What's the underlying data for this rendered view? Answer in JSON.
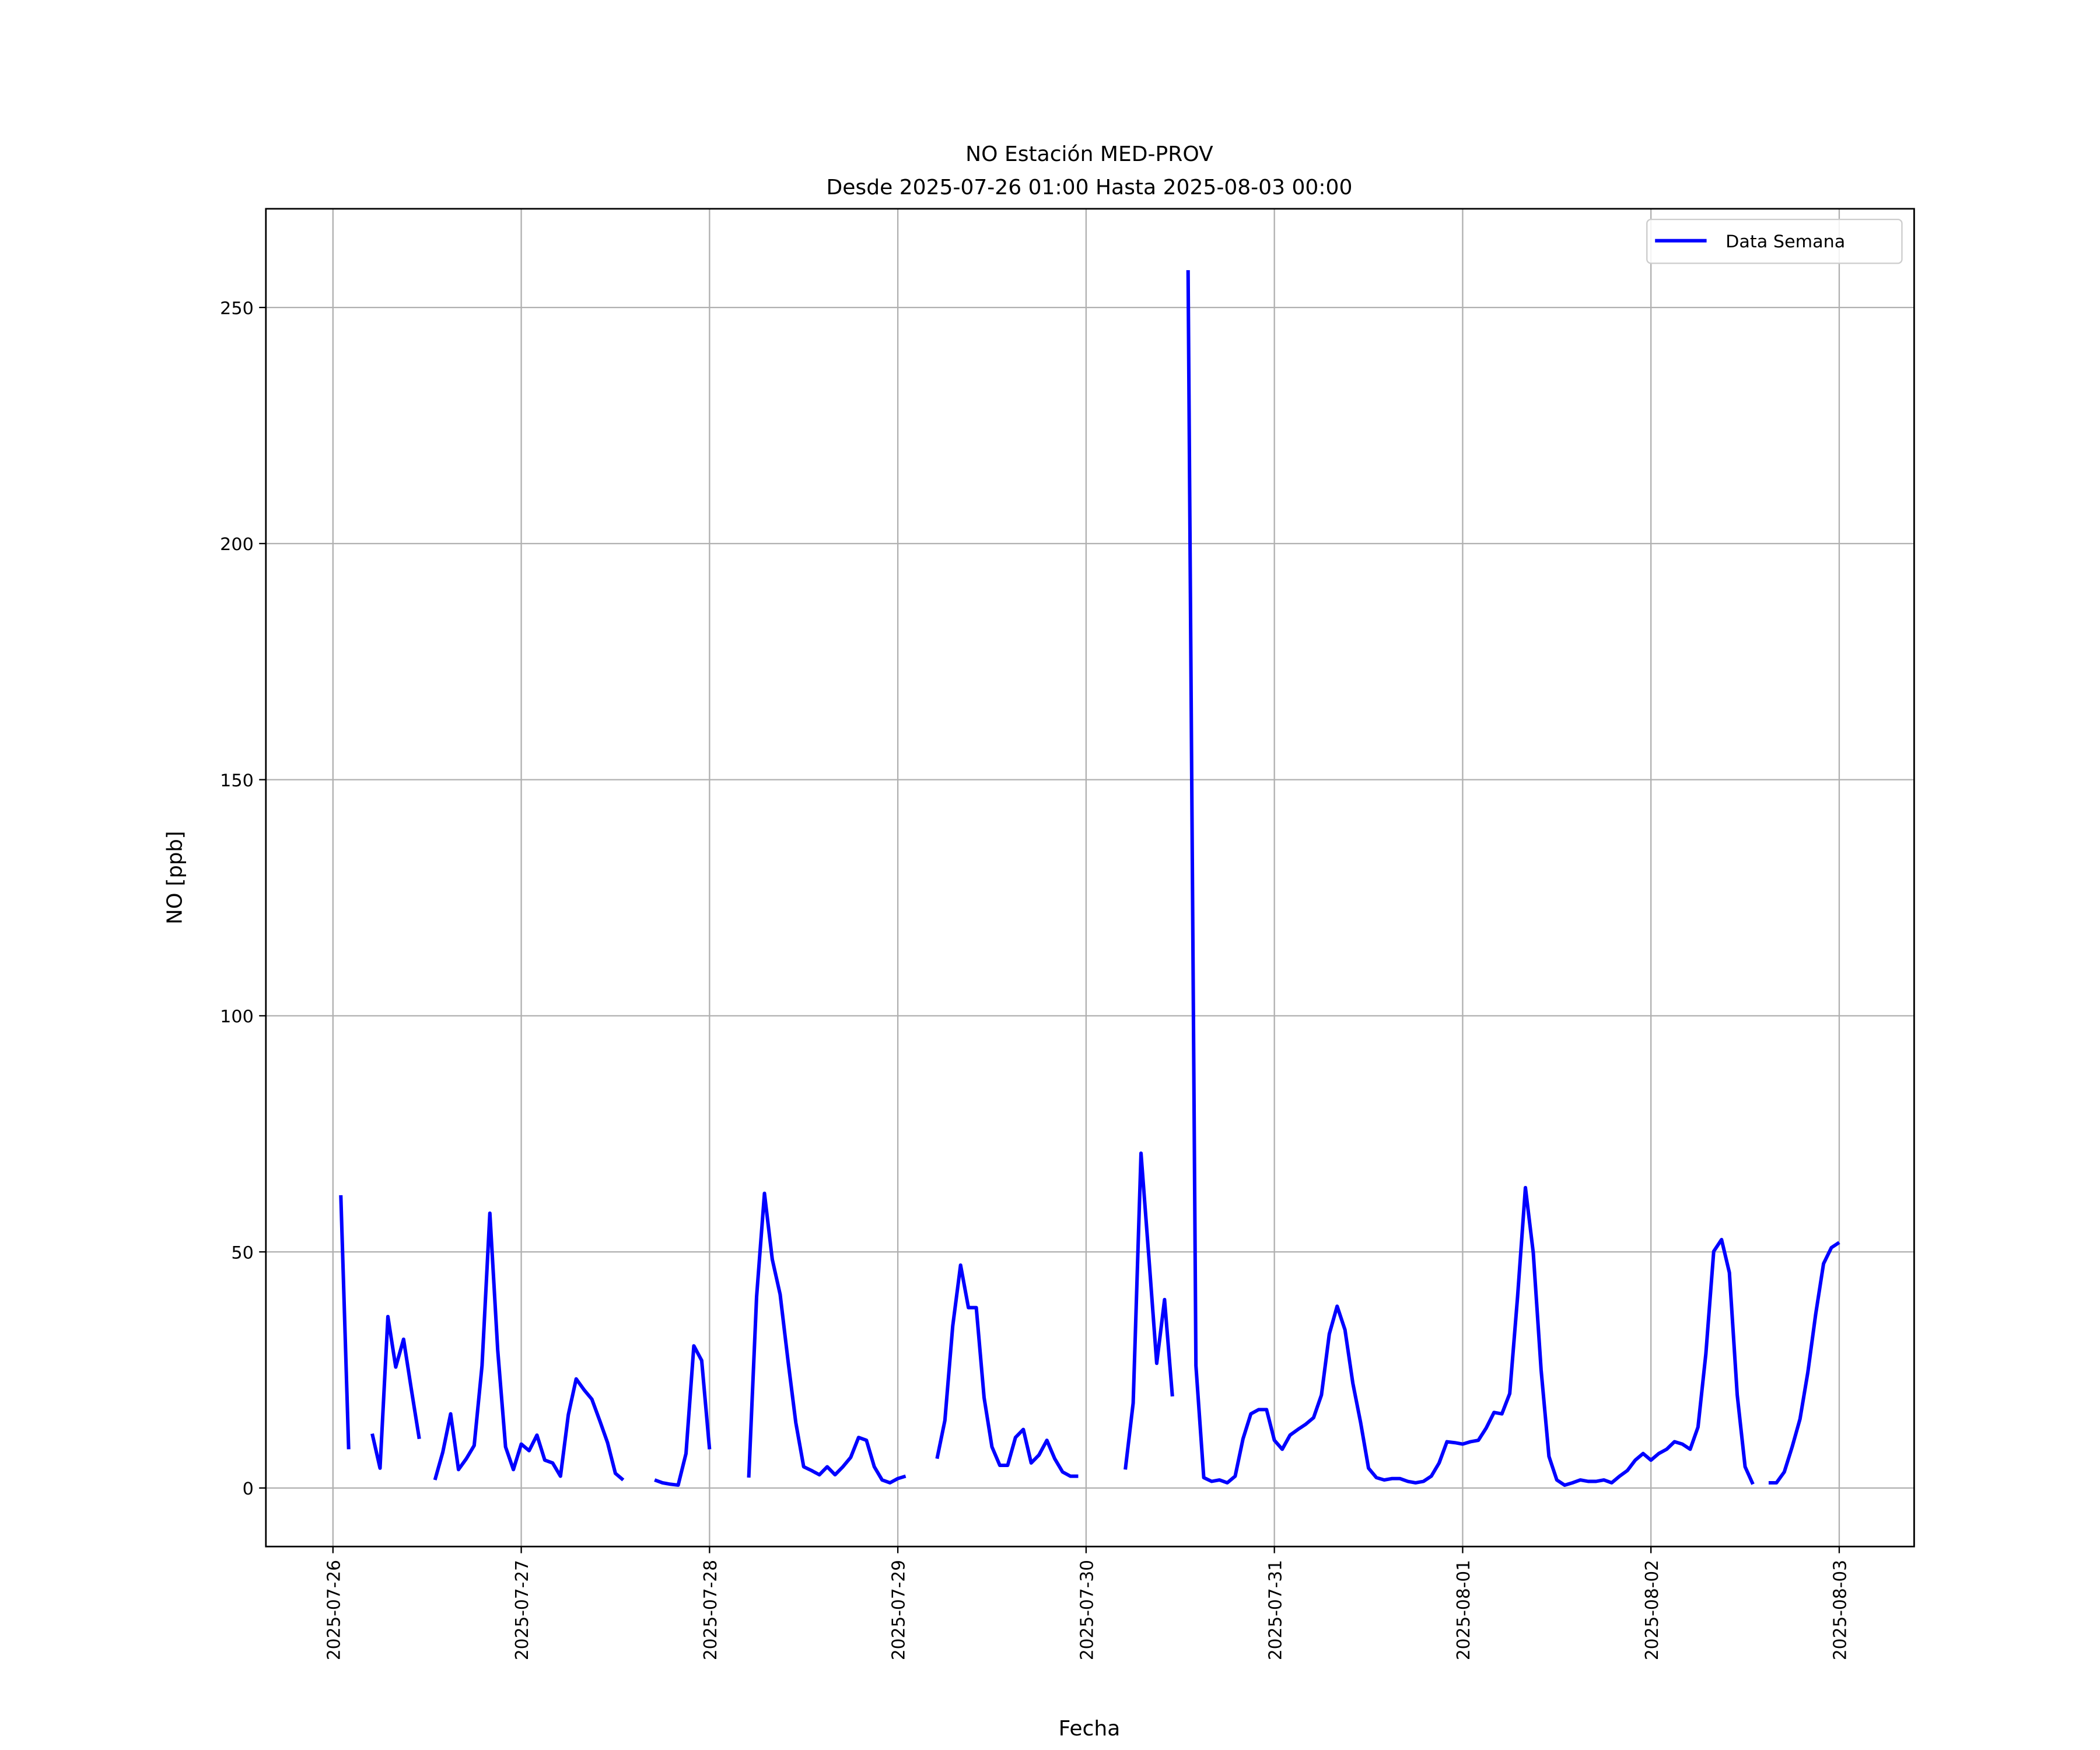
{
  "chart_data": {
    "type": "line",
    "title": "NO Estación MED-PROV",
    "subtitle": "Desde 2025-07-26 01:00 Hasta 2025-08-03 00:00",
    "x_label": "Fecha",
    "y_label": "NO [ppb]",
    "x": [
      "2025-07-26 01:00",
      "2025-07-26 02:00",
      "2025-07-26 03:00",
      "2025-07-26 04:00",
      "2025-07-26 05:00",
      "2025-07-26 06:00",
      "2025-07-26 07:00",
      "2025-07-26 08:00",
      "2025-07-26 09:00",
      "2025-07-26 10:00",
      "2025-07-26 11:00",
      "2025-07-26 12:00",
      "2025-07-26 13:00",
      "2025-07-26 14:00",
      "2025-07-26 15:00",
      "2025-07-26 16:00",
      "2025-07-26 17:00",
      "2025-07-26 18:00",
      "2025-07-26 19:00",
      "2025-07-26 20:00",
      "2025-07-26 21:00",
      "2025-07-26 22:00",
      "2025-07-26 23:00",
      "2025-07-27 00:00",
      "2025-07-27 01:00",
      "2025-07-27 02:00",
      "2025-07-27 03:00",
      "2025-07-27 04:00",
      "2025-07-27 05:00",
      "2025-07-27 06:00",
      "2025-07-27 07:00",
      "2025-07-27 08:00",
      "2025-07-27 09:00",
      "2025-07-27 10:00",
      "2025-07-27 11:00",
      "2025-07-27 12:00",
      "2025-07-27 13:00",
      "2025-07-27 14:00",
      "2025-07-27 15:00",
      "2025-07-27 16:00",
      "2025-07-27 17:00",
      "2025-07-27 18:00",
      "2025-07-27 19:00",
      "2025-07-27 20:00",
      "2025-07-27 21:00",
      "2025-07-27 22:00",
      "2025-07-27 23:00",
      "2025-07-28 00:00",
      "2025-07-28 01:00",
      "2025-07-28 02:00",
      "2025-07-28 03:00",
      "2025-07-28 04:00",
      "2025-07-28 05:00",
      "2025-07-28 06:00",
      "2025-07-28 07:00",
      "2025-07-28 08:00",
      "2025-07-28 09:00",
      "2025-07-28 10:00",
      "2025-07-28 11:00",
      "2025-07-28 12:00",
      "2025-07-28 13:00",
      "2025-07-28 14:00",
      "2025-07-28 15:00",
      "2025-07-28 16:00",
      "2025-07-28 17:00",
      "2025-07-28 18:00",
      "2025-07-28 19:00",
      "2025-07-28 20:00",
      "2025-07-28 21:00",
      "2025-07-28 22:00",
      "2025-07-28 23:00",
      "2025-07-29 00:00",
      "2025-07-29 01:00",
      "2025-07-29 02:00",
      "2025-07-29 03:00",
      "2025-07-29 04:00",
      "2025-07-29 05:00",
      "2025-07-29 06:00",
      "2025-07-29 07:00",
      "2025-07-29 08:00",
      "2025-07-29 09:00",
      "2025-07-29 10:00",
      "2025-07-29 11:00",
      "2025-07-29 12:00",
      "2025-07-29 13:00",
      "2025-07-29 14:00",
      "2025-07-29 15:00",
      "2025-07-29 16:00",
      "2025-07-29 17:00",
      "2025-07-29 18:00",
      "2025-07-29 19:00",
      "2025-07-29 20:00",
      "2025-07-29 21:00",
      "2025-07-29 22:00",
      "2025-07-29 23:00",
      "2025-07-30 00:00",
      "2025-07-30 01:00",
      "2025-07-30 02:00",
      "2025-07-30 03:00",
      "2025-07-30 04:00",
      "2025-07-30 05:00",
      "2025-07-30 06:00",
      "2025-07-30 07:00",
      "2025-07-30 08:00",
      "2025-07-30 09:00",
      "2025-07-30 10:00",
      "2025-07-30 11:00",
      "2025-07-30 12:00",
      "2025-07-30 13:00",
      "2025-07-30 14:00",
      "2025-07-30 15:00",
      "2025-07-30 16:00",
      "2025-07-30 17:00",
      "2025-07-30 18:00",
      "2025-07-30 19:00",
      "2025-07-30 20:00",
      "2025-07-30 21:00",
      "2025-07-30 22:00",
      "2025-07-30 23:00",
      "2025-07-31 00:00",
      "2025-07-31 01:00",
      "2025-07-31 02:00",
      "2025-07-31 03:00",
      "2025-07-31 04:00",
      "2025-07-31 05:00",
      "2025-07-31 06:00",
      "2025-07-31 07:00",
      "2025-07-31 08:00",
      "2025-07-31 09:00",
      "2025-07-31 10:00",
      "2025-07-31 11:00",
      "2025-07-31 12:00",
      "2025-07-31 13:00",
      "2025-07-31 14:00",
      "2025-07-31 15:00",
      "2025-07-31 16:00",
      "2025-07-31 17:00",
      "2025-07-31 18:00",
      "2025-07-31 19:00",
      "2025-07-31 20:00",
      "2025-07-31 21:00",
      "2025-07-31 22:00",
      "2025-07-31 23:00",
      "2025-08-01 00:00",
      "2025-08-01 01:00",
      "2025-08-01 02:00",
      "2025-08-01 03:00",
      "2025-08-01 04:00",
      "2025-08-01 05:00",
      "2025-08-01 06:00",
      "2025-08-01 07:00",
      "2025-08-01 08:00",
      "2025-08-01 09:00",
      "2025-08-01 10:00",
      "2025-08-01 11:00",
      "2025-08-01 12:00",
      "2025-08-01 13:00",
      "2025-08-01 14:00",
      "2025-08-01 15:00",
      "2025-08-01 16:00",
      "2025-08-01 17:00",
      "2025-08-01 18:00",
      "2025-08-01 19:00",
      "2025-08-01 20:00",
      "2025-08-01 21:00",
      "2025-08-01 22:00",
      "2025-08-01 23:00",
      "2025-08-02 00:00",
      "2025-08-02 01:00",
      "2025-08-02 02:00",
      "2025-08-02 03:00",
      "2025-08-02 04:00",
      "2025-08-02 05:00",
      "2025-08-02 06:00",
      "2025-08-02 07:00",
      "2025-08-02 08:00",
      "2025-08-02 09:00",
      "2025-08-02 10:00",
      "2025-08-02 11:00",
      "2025-08-02 12:00",
      "2025-08-02 13:00",
      "2025-08-02 14:00",
      "2025-08-02 15:00",
      "2025-08-02 16:00",
      "2025-08-02 17:00",
      "2025-08-02 18:00",
      "2025-08-02 19:00",
      "2025-08-02 20:00",
      "2025-08-02 21:00",
      "2025-08-02 22:00",
      "2025-08-02 23:00",
      "2025-08-03 00:00"
    ],
    "series": [
      {
        "name": "Data Semana",
        "color": "#0000ff",
        "values": [
          62,
          8.2,
          null,
          null,
          11.5,
          4.2,
          36.3,
          25.6,
          31.5,
          20.8,
          10.4,
          null,
          1.7,
          7.6,
          15.7,
          3.9,
          6.2,
          9,
          25.9,
          58.2,
          29.2,
          8.7,
          3.9,
          9.3,
          7.9,
          11.2,
          5.9,
          5.3,
          2.5,
          15.5,
          23.1,
          20.8,
          18.8,
          14.3,
          9.6,
          3.1,
          1.7,
          null,
          null,
          null,
          1.7,
          1.1,
          0.8,
          0.6,
          7.3,
          30.1,
          27,
          8.2,
          null,
          null,
          null,
          null,
          2.2,
          40.5,
          62.4,
          48.4,
          41,
          27,
          13.8,
          4.5,
          3.7,
          2.8,
          4.5,
          2.8,
          4.5,
          6.5,
          10.7,
          10.1,
          4.5,
          1.7,
          1.1,
          2,
          2.5,
          null,
          null,
          null,
          6.2,
          14.3,
          34.3,
          47.2,
          38.2,
          38.2,
          19.1,
          8.7,
          4.8,
          4.8,
          10.7,
          12.4,
          5.3,
          7,
          10.1,
          6.2,
          3.4,
          2.5,
          2.5,
          null,
          null,
          null,
          null,
          null,
          3.9,
          18,
          70.9,
          48.9,
          26.4,
          39.9,
          19.4,
          null,
          257.9,
          25.9,
          2.2,
          1.4,
          1.7,
          1.1,
          2.5,
          10.4,
          15.7,
          16.6,
          16.6,
          10.1,
          8.2,
          11.2,
          12.4,
          13.5,
          14.9,
          19.7,
          32.6,
          38.5,
          33.5,
          22.2,
          13.8,
          4.2,
          2.2,
          1.7,
          2,
          2,
          1.4,
          1.1,
          1.4,
          2.5,
          5.3,
          9.8,
          9.6,
          9.3,
          9.8,
          10.1,
          12.7,
          16,
          15.7,
          20,
          40.5,
          63.6,
          49.8,
          25,
          6.7,
          1.7,
          0.6,
          1.1,
          1.7,
          1.4,
          1.4,
          1.7,
          1.1,
          2.5,
          3.7,
          5.9,
          7.3,
          5.9,
          7.3,
          8.2,
          9.8,
          9.3,
          8.2,
          12.9,
          28.4,
          50.1,
          52.6,
          45.6,
          19.7,
          4.5,
          0.8,
          null,
          1.1,
          1.1,
          3.4,
          8.7,
          14.6,
          24.5,
          36.8,
          47.5,
          50.9,
          52
        ]
      }
    ],
    "xlim": [
      "2025-07-25 15:27",
      "2025-08-03 09:33"
    ],
    "xticks": [
      "2025-07-26",
      "2025-07-27",
      "2025-07-28",
      "2025-07-29",
      "2025-07-30",
      "2025-07-31",
      "2025-08-01",
      "2025-08-02",
      "2025-08-03"
    ],
    "ylim": [
      -12.4,
      270.9
    ],
    "yticks": [
      0,
      50,
      100,
      150,
      200,
      250
    ],
    "grid": true,
    "legend": "upper right"
  }
}
